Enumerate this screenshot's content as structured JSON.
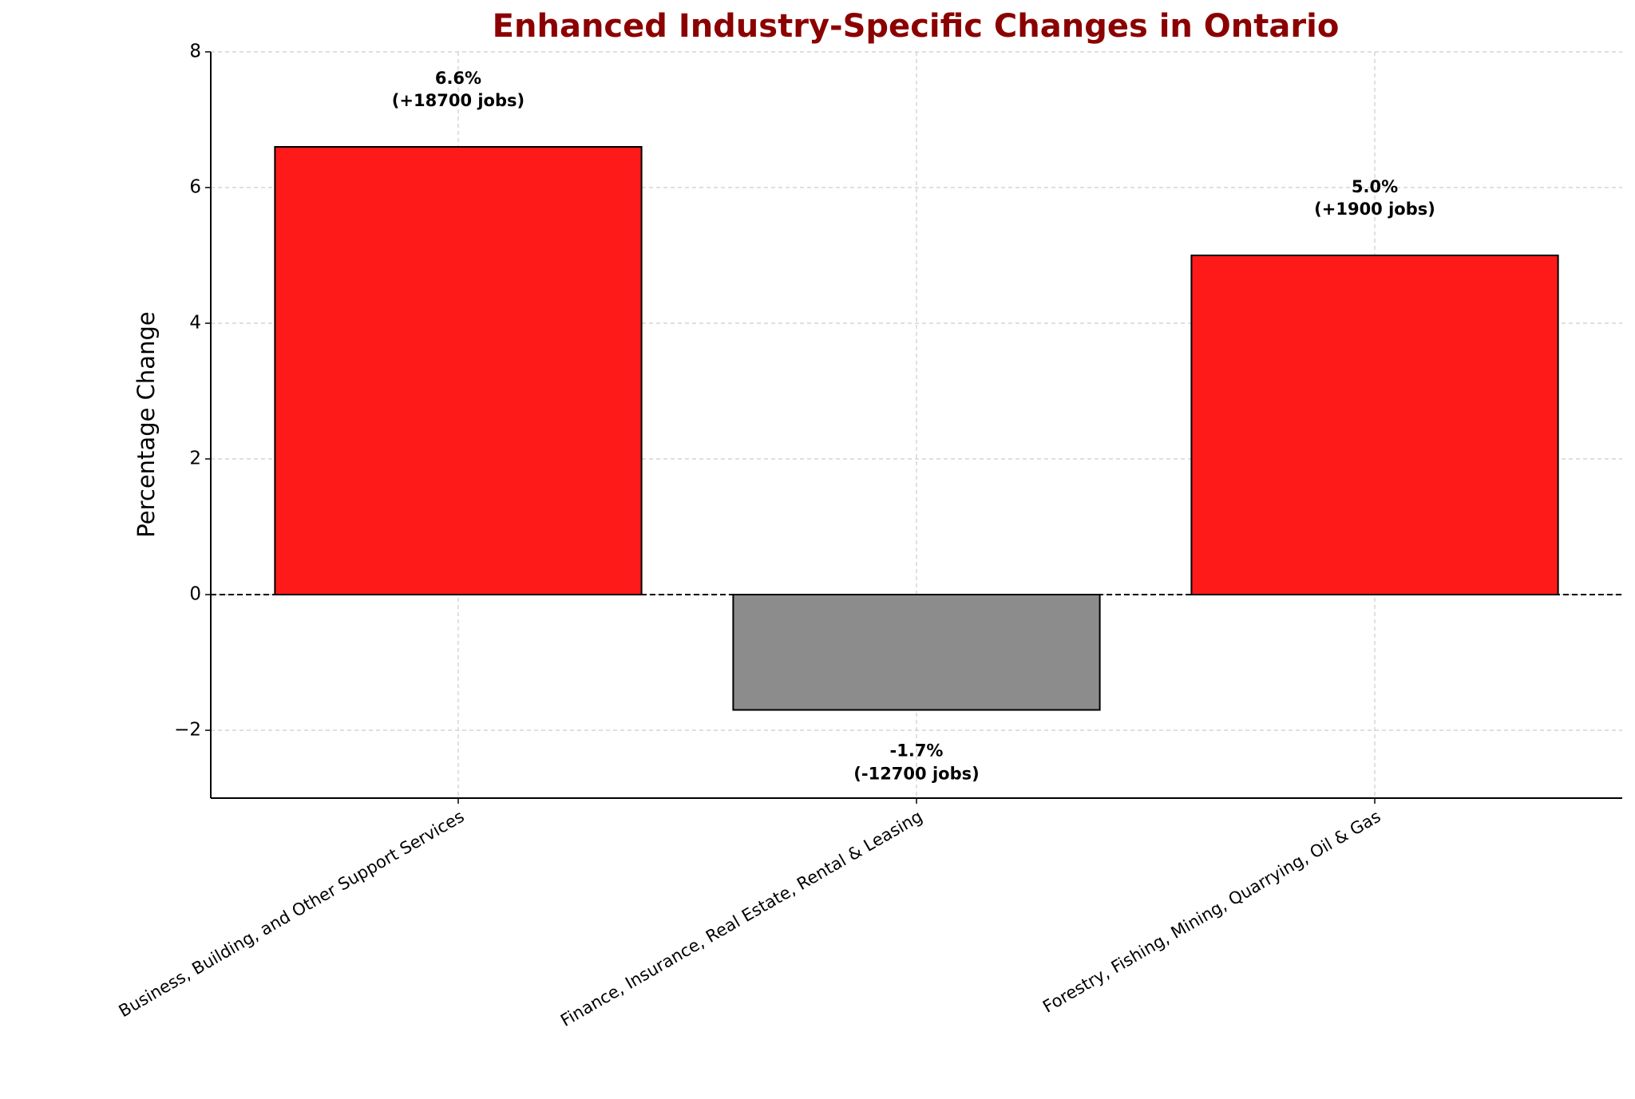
{
  "chart_data": {
    "type": "bar",
    "title": "Enhanced Industry-Specific Changes in Ontario",
    "ylabel": "Percentage Change",
    "categories": [
      "Business, Building, and Other Support Services",
      "Finance, Insurance, Real Estate, Rental & Leasing",
      "Forestry, Fishing, Mining, Quarrying, Oil & Gas"
    ],
    "values": [
      6.6,
      -1.7,
      5.0
    ],
    "value_labels": [
      "6.6%",
      "-1.7%",
      "5.0%"
    ],
    "annotations": [
      "(+18700 jobs)",
      "(-12700 jobs)",
      "(+1900 jobs)"
    ],
    "colors": [
      "#ff1a1a",
      "#8c8c8c",
      "#ff1a1a"
    ],
    "ylim": [
      -3,
      8
    ],
    "yticks": [
      {
        "value": -2,
        "label": "−2"
      },
      0,
      2,
      4,
      6,
      8
    ],
    "grid": true
  }
}
